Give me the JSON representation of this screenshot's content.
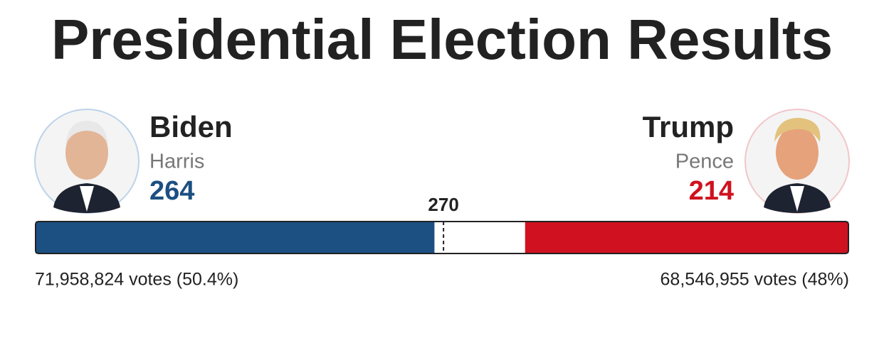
{
  "chart_data": {
    "type": "bar",
    "title": "Presidential Election Results",
    "xlim": [
      0,
      538
    ],
    "threshold": 270,
    "series": [
      {
        "name": "Biden",
        "running_mate": "Harris",
        "color": "#1c4f82",
        "values": [
          264
        ],
        "votes": "71,958,824 votes (50.4%)"
      },
      {
        "name": "Trump",
        "running_mate": "Pence",
        "color": "#d0111f",
        "values": [
          214
        ],
        "votes": "68,546,955 votes (48%)"
      }
    ]
  }
}
